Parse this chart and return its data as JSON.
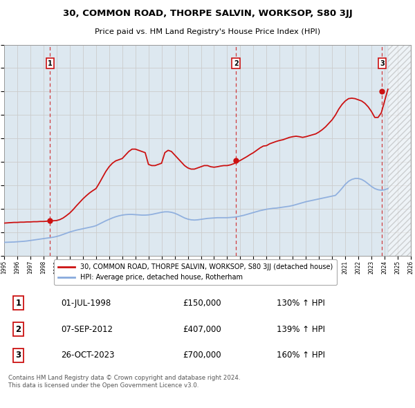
{
  "title": "30, COMMON ROAD, THORPE SALVIN, WORKSOP, S80 3JJ",
  "subtitle": "Price paid vs. HM Land Registry's House Price Index (HPI)",
  "legend_line1": "30, COMMON ROAD, THORPE SALVIN, WORKSOP, S80 3JJ (detached house)",
  "legend_line2": "HPI: Average price, detached house, Rotherham",
  "footer": "Contains HM Land Registry data © Crown copyright and database right 2024.\nThis data is licensed under the Open Government Licence v3.0.",
  "sale_points": [
    {
      "label": "1",
      "date": "01-JUL-1998",
      "year": 1998.5,
      "price": 150000,
      "hpi_pct": "130%"
    },
    {
      "label": "2",
      "date": "07-SEP-2012",
      "year": 2012.67,
      "price": 407000,
      "hpi_pct": "139%"
    },
    {
      "label": "3",
      "date": "26-OCT-2023",
      "year": 2023.81,
      "price": 700000,
      "hpi_pct": "160%"
    }
  ],
  "hpi_line_color": "#88aadd",
  "price_line_color": "#cc1111",
  "sale_marker_color": "#cc1111",
  "dashed_vline_color": "#cc1111",
  "grid_color": "#cccccc",
  "background_color": "#ffffff",
  "plot_bg_color": "#dde8f0",
  "ylim": [
    0,
    900000
  ],
  "yticks": [
    0,
    100000,
    200000,
    300000,
    400000,
    500000,
    600000,
    700000,
    800000,
    900000
  ],
  "xmin": 1995,
  "xmax": 2026,
  "xticks": [
    1995,
    1996,
    1997,
    1998,
    1999,
    2000,
    2001,
    2002,
    2003,
    2004,
    2005,
    2006,
    2007,
    2008,
    2009,
    2010,
    2011,
    2012,
    2013,
    2014,
    2015,
    2016,
    2017,
    2018,
    2019,
    2020,
    2021,
    2022,
    2023,
    2024,
    2025,
    2026
  ],
  "hpi_data_x": [
    1995.0,
    1995.25,
    1995.5,
    1995.75,
    1996.0,
    1996.25,
    1996.5,
    1996.75,
    1997.0,
    1997.25,
    1997.5,
    1997.75,
    1998.0,
    1998.25,
    1998.5,
    1998.75,
    1999.0,
    1999.25,
    1999.5,
    1999.75,
    2000.0,
    2000.25,
    2000.5,
    2000.75,
    2001.0,
    2001.25,
    2001.5,
    2001.75,
    2002.0,
    2002.25,
    2002.5,
    2002.75,
    2003.0,
    2003.25,
    2003.5,
    2003.75,
    2004.0,
    2004.25,
    2004.5,
    2004.75,
    2005.0,
    2005.25,
    2005.5,
    2005.75,
    2006.0,
    2006.25,
    2006.5,
    2006.75,
    2007.0,
    2007.25,
    2007.5,
    2007.75,
    2008.0,
    2008.25,
    2008.5,
    2008.75,
    2009.0,
    2009.25,
    2009.5,
    2009.75,
    2010.0,
    2010.25,
    2010.5,
    2010.75,
    2011.0,
    2011.25,
    2011.5,
    2011.75,
    2012.0,
    2012.25,
    2012.5,
    2012.75,
    2013.0,
    2013.25,
    2013.5,
    2013.75,
    2014.0,
    2014.25,
    2014.5,
    2014.75,
    2015.0,
    2015.25,
    2015.5,
    2015.75,
    2016.0,
    2016.25,
    2016.5,
    2016.75,
    2017.0,
    2017.25,
    2017.5,
    2017.75,
    2018.0,
    2018.25,
    2018.5,
    2018.75,
    2019.0,
    2019.25,
    2019.5,
    2019.75,
    2020.0,
    2020.25,
    2020.5,
    2020.75,
    2021.0,
    2021.25,
    2021.5,
    2021.75,
    2022.0,
    2022.25,
    2022.5,
    2022.75,
    2023.0,
    2023.25,
    2023.5,
    2023.75,
    2024.0,
    2024.25
  ],
  "hpi_data_y": [
    58000,
    58500,
    59000,
    59500,
    60500,
    61500,
    62500,
    64000,
    66000,
    68000,
    70000,
    72000,
    74000,
    76000,
    78000,
    80000,
    83000,
    87000,
    92000,
    97000,
    102000,
    106000,
    110000,
    113000,
    116000,
    119000,
    122000,
    125000,
    129000,
    136000,
    143000,
    150000,
    156000,
    162000,
    167000,
    171000,
    174000,
    176000,
    177000,
    177000,
    176000,
    175000,
    174000,
    174000,
    175000,
    177000,
    180000,
    183000,
    186000,
    188000,
    188000,
    186000,
    182000,
    176000,
    169000,
    162000,
    157000,
    154000,
    153000,
    154000,
    156000,
    158000,
    160000,
    161000,
    162000,
    163000,
    163000,
    163000,
    163000,
    164000,
    165000,
    167000,
    170000,
    173000,
    177000,
    181000,
    185000,
    189000,
    193000,
    196000,
    199000,
    201000,
    203000,
    204000,
    206000,
    208000,
    210000,
    212000,
    215000,
    219000,
    223000,
    227000,
    231000,
    234000,
    237000,
    240000,
    243000,
    246000,
    249000,
    252000,
    255000,
    258000,
    272000,
    288000,
    305000,
    318000,
    326000,
    330000,
    330000,
    326000,
    318000,
    307000,
    296000,
    287000,
    282000,
    280000,
    282000,
    287000
  ],
  "price_data_x": [
    1995.0,
    1995.25,
    1995.5,
    1995.75,
    1996.0,
    1996.25,
    1996.5,
    1996.75,
    1997.0,
    1997.25,
    1997.5,
    1997.75,
    1998.0,
    1998.25,
    1998.5,
    1998.75,
    1999.0,
    1999.25,
    1999.5,
    1999.75,
    2000.0,
    2000.25,
    2000.5,
    2000.75,
    2001.0,
    2001.25,
    2001.5,
    2001.75,
    2002.0,
    2002.25,
    2002.5,
    2002.75,
    2003.0,
    2003.25,
    2003.5,
    2003.75,
    2004.0,
    2004.25,
    2004.5,
    2004.75,
    2005.0,
    2005.25,
    2005.5,
    2005.75,
    2006.0,
    2006.25,
    2006.5,
    2006.75,
    2007.0,
    2007.25,
    2007.5,
    2007.75,
    2008.0,
    2008.25,
    2008.5,
    2008.75,
    2009.0,
    2009.25,
    2009.5,
    2009.75,
    2010.0,
    2010.25,
    2010.5,
    2010.75,
    2011.0,
    2011.25,
    2011.5,
    2011.75,
    2012.0,
    2012.25,
    2012.5,
    2012.75,
    2013.0,
    2013.25,
    2013.5,
    2013.75,
    2014.0,
    2014.25,
    2014.5,
    2014.75,
    2015.0,
    2015.25,
    2015.5,
    2015.75,
    2016.0,
    2016.25,
    2016.5,
    2016.75,
    2017.0,
    2017.25,
    2017.5,
    2017.75,
    2018.0,
    2018.25,
    2018.5,
    2018.75,
    2019.0,
    2019.25,
    2019.5,
    2019.75,
    2020.0,
    2020.25,
    2020.5,
    2020.75,
    2021.0,
    2021.25,
    2021.5,
    2021.75,
    2022.0,
    2022.25,
    2022.5,
    2022.75,
    2023.0,
    2023.25,
    2023.5,
    2023.75,
    2024.0,
    2024.25
  ],
  "price_data_y": [
    140000,
    141000,
    142000,
    143000,
    143000,
    144000,
    144000,
    145000,
    145000,
    146000,
    146000,
    147000,
    147000,
    148000,
    150000,
    150000,
    151000,
    155000,
    162000,
    172000,
    183000,
    197000,
    213000,
    228000,
    243000,
    256000,
    268000,
    278000,
    287000,
    310000,
    335000,
    360000,
    380000,
    395000,
    405000,
    410000,
    415000,
    430000,
    445000,
    455000,
    455000,
    450000,
    445000,
    440000,
    390000,
    385000,
    385000,
    390000,
    395000,
    440000,
    450000,
    445000,
    430000,
    415000,
    400000,
    385000,
    375000,
    370000,
    370000,
    375000,
    380000,
    385000,
    385000,
    380000,
    378000,
    380000,
    383000,
    385000,
    385000,
    388000,
    393000,
    400000,
    407000,
    415000,
    423000,
    432000,
    440000,
    450000,
    460000,
    468000,
    470000,
    478000,
    483000,
    488000,
    492000,
    495000,
    500000,
    505000,
    508000,
    510000,
    508000,
    505000,
    508000,
    512000,
    516000,
    520000,
    528000,
    538000,
    550000,
    565000,
    580000,
    600000,
    625000,
    645000,
    660000,
    670000,
    672000,
    670000,
    665000,
    660000,
    650000,
    635000,
    615000,
    590000,
    590000,
    610000,
    660000,
    710000
  ]
}
